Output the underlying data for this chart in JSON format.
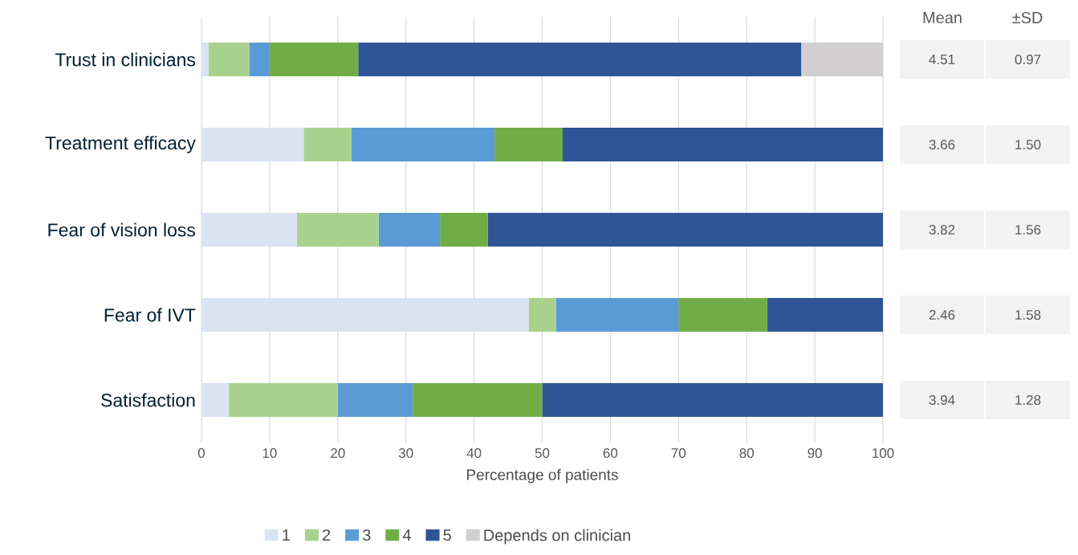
{
  "chart_data": {
    "type": "bar",
    "orientation": "horizontal",
    "stacked": true,
    "categories": [
      "Trust in clinicians",
      "Treatment efficacy",
      "Fear of vision loss",
      "Fear of IVT",
      "Satisfaction"
    ],
    "series": [
      {
        "name": "1",
        "color": "#dae3f3",
        "values": [
          1,
          15,
          14,
          48,
          4
        ]
      },
      {
        "name": "2",
        "color": "#a9d18e",
        "values": [
          6,
          7,
          12,
          4,
          16
        ]
      },
      {
        "name": "3",
        "color": "#5b9bd5",
        "values": [
          3,
          21,
          9,
          18,
          11
        ]
      },
      {
        "name": "4",
        "color": "#70ad47",
        "values": [
          13,
          10,
          7,
          13,
          19
        ]
      },
      {
        "name": "5",
        "color": "#2f5597",
        "values": [
          65,
          47,
          58,
          17,
          50
        ]
      },
      {
        "name": "Depends on clinician",
        "color": "#d0cece",
        "values": [
          12,
          0,
          0,
          0,
          0
        ]
      }
    ],
    "xlabel": "Percentage of patients",
    "xlim": [
      0,
      100
    ],
    "xticks": [
      0,
      10,
      20,
      30,
      40,
      50,
      60,
      70,
      80,
      90,
      100
    ],
    "grid": "x",
    "legend": "bottom",
    "annotations": [
      "Mean",
      "±SD",
      "4.51",
      "0.97",
      "3.66",
      "1.50",
      "3.82",
      "1.56",
      "2.46",
      "1.58",
      "3.94",
      "1.28"
    ]
  }
}
